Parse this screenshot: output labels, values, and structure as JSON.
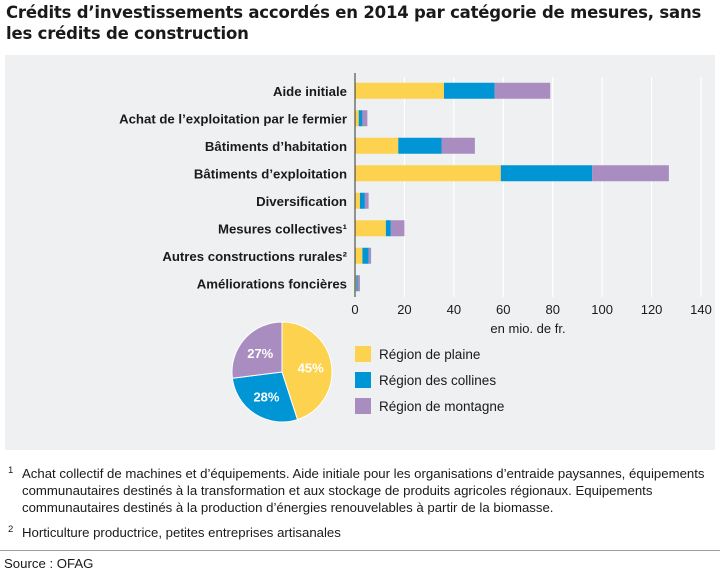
{
  "title": "Crédits d’investissements accordés en 2014 par catégorie de mesures, sans les crédits de construction",
  "colors": {
    "plaine": "#fdd24f",
    "collines": "#0096d6",
    "montagne": "#a98cc0",
    "panel": "#eef0f2",
    "grid": "#ffffff"
  },
  "chart_data": [
    {
      "type": "bar",
      "orientation": "horizontal",
      "stacked": true,
      "categories": [
        "Aide initiale",
        "Achat de l’exploitation par le fermier",
        "Bâtiments d’habitation",
        "Bâtiments d’exploitation",
        "Diversification",
        "Mesures collectives¹",
        "Autres constructions rurales²",
        "Améliorations foncières"
      ],
      "series": [
        {
          "name": "Région de plaine",
          "values": [
            36,
            1.5,
            17.5,
            59,
            2,
            12.5,
            3,
            0.5
          ]
        },
        {
          "name": "Région des collines",
          "values": [
            20.5,
            1.5,
            17.5,
            37,
            2,
            2,
            2.5,
            0.5
          ]
        },
        {
          "name": "Région de montagne",
          "values": [
            22.5,
            2,
            13.5,
            31,
            1.5,
            5.5,
            1,
            1
          ]
        }
      ],
      "xlabel": "en mio. de fr.",
      "xticks": [
        0,
        20,
        40,
        60,
        80,
        100,
        120,
        140
      ],
      "xlim": [
        0,
        140
      ],
      "grid": true
    },
    {
      "type": "pie",
      "labels": [
        "Région de plaine",
        "Région des collines",
        "Région de montagne"
      ],
      "values": [
        45,
        28,
        27
      ],
      "value_labels": [
        "45%",
        "28%",
        "27%"
      ]
    }
  ],
  "legend": [
    "Région de plaine",
    "Région des collines",
    "Région de montagne"
  ],
  "footnotes": [
    {
      "mark": "1",
      "text": "Achat collectif de machines et d’équipements. Aide initiale pour les organisations d’entraide paysannes, équipements communautaires destinés à la transformation et aux stockage de produits agricoles régionaux. Equipements communautaires destinés à la production d’énergies renouvelables à partir de la biomasse."
    },
    {
      "mark": "2",
      "text": "Horticulture productrice, petites entreprises artisanales"
    }
  ],
  "source": "Source : OFAG"
}
